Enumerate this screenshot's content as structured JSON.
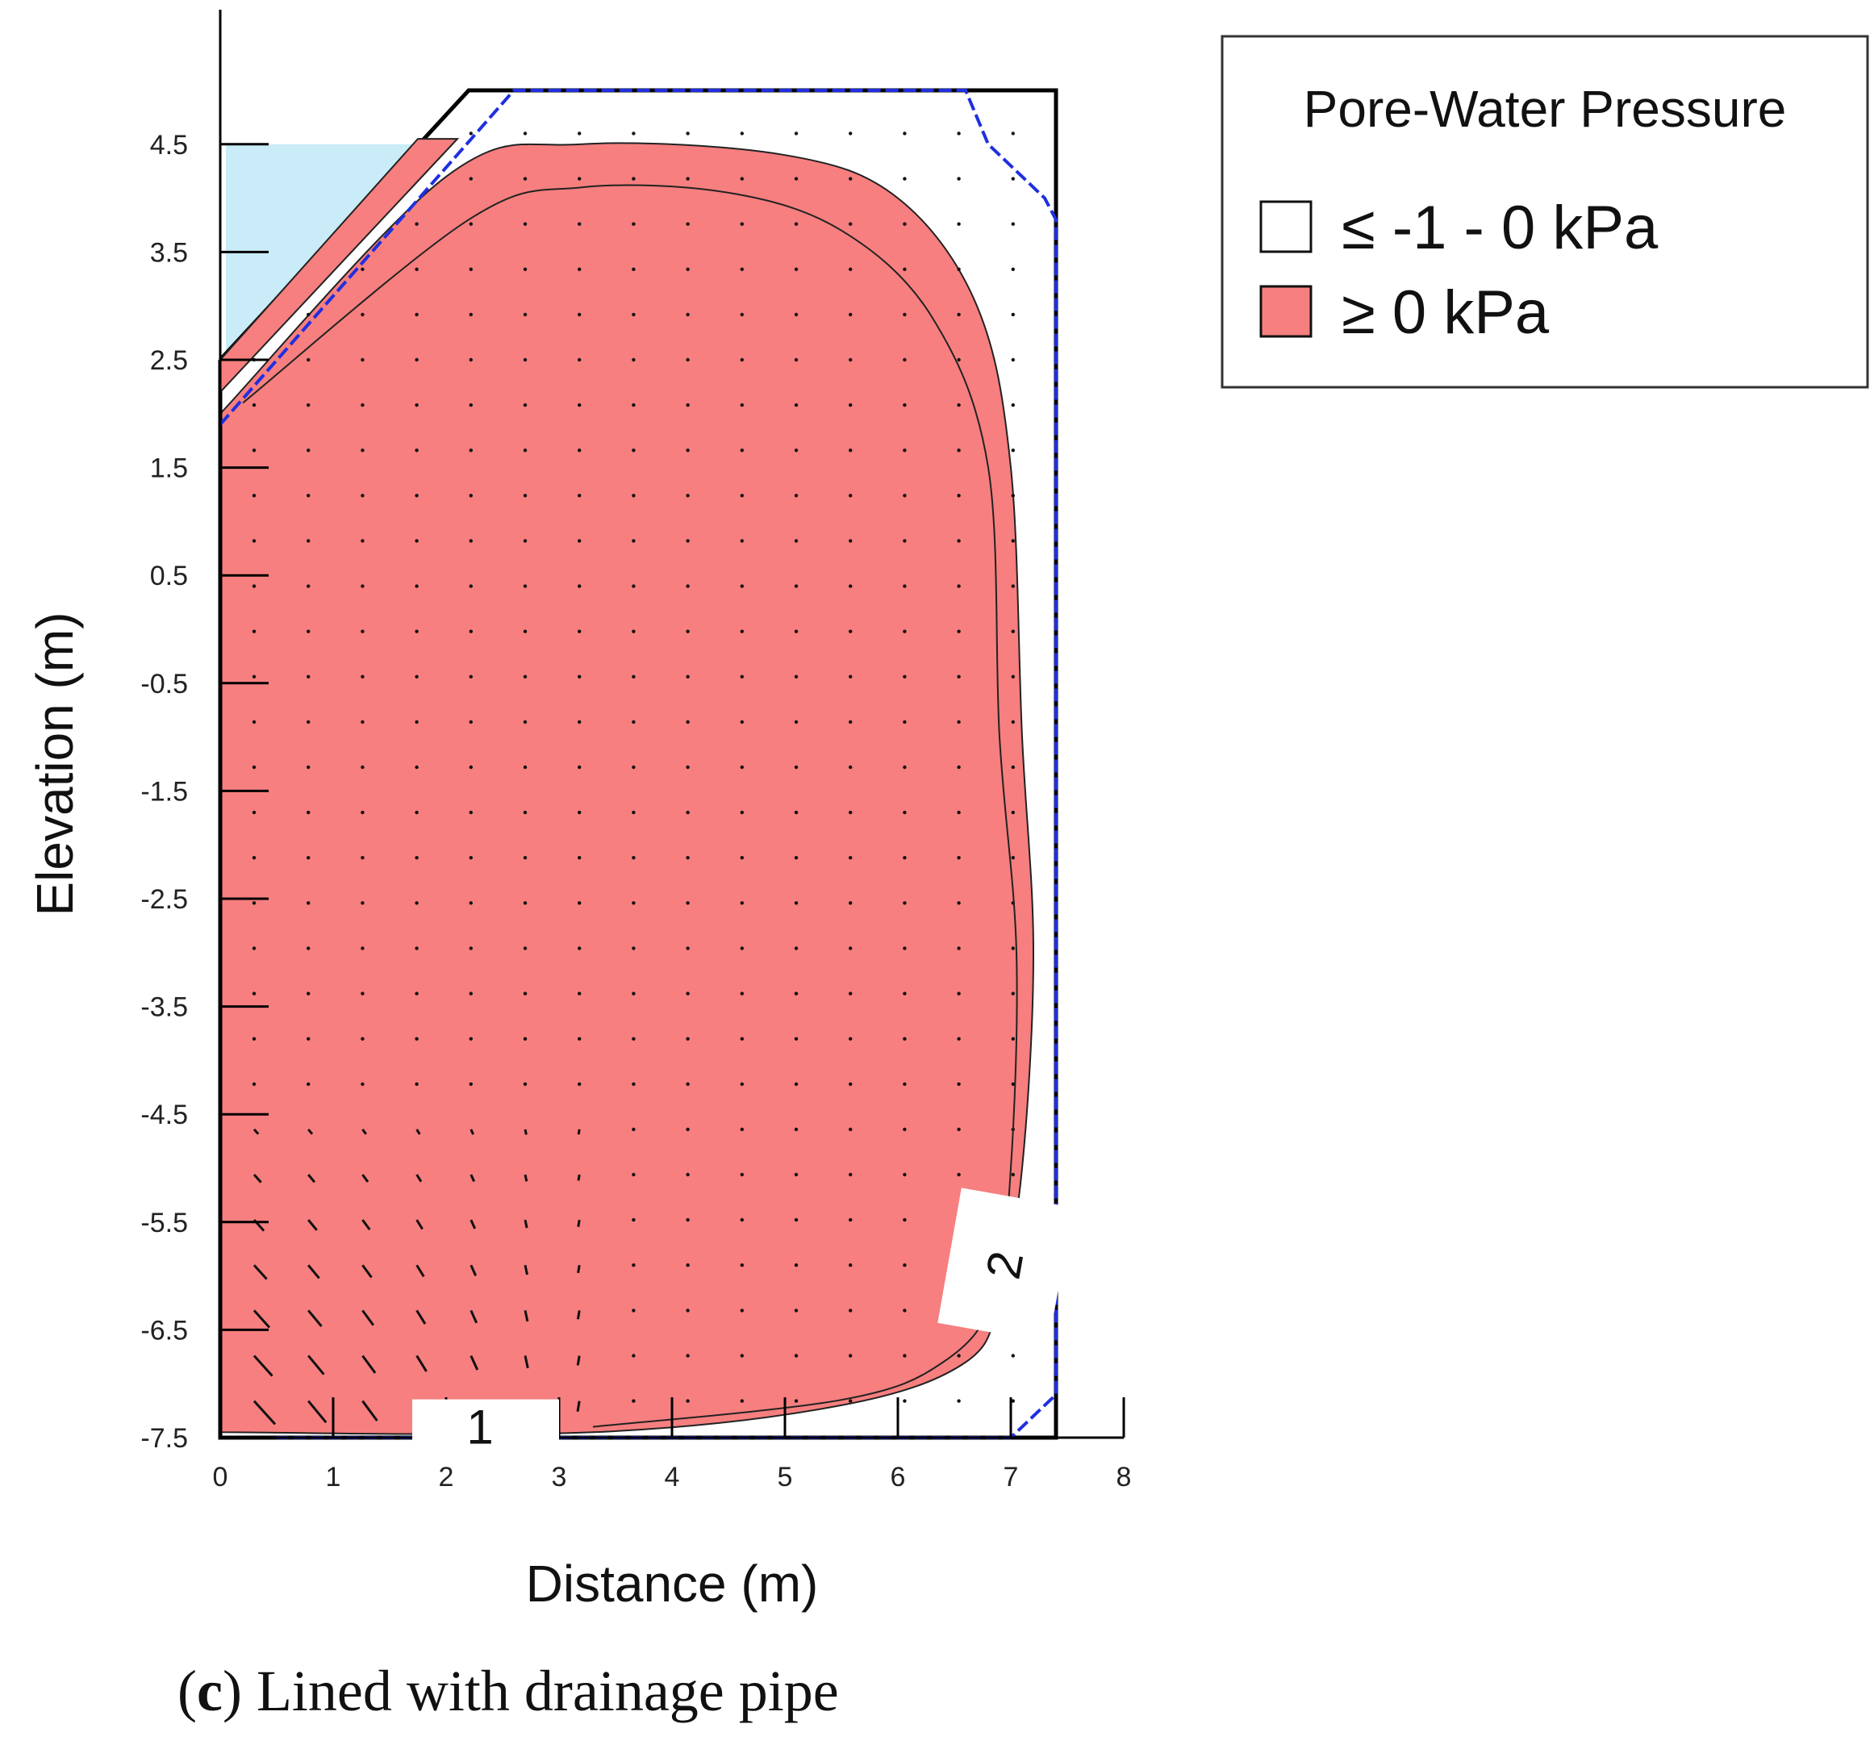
{
  "chart_data": {
    "type": "heatmap",
    "subtype": "contour",
    "xlabel": "Distance (m)",
    "ylabel": "Elevation (m)",
    "xlim": [
      0,
      8
    ],
    "ylim": [
      -7.5,
      5
    ],
    "x_ticks": [
      "0",
      "1",
      "2",
      "3",
      "4",
      "5",
      "6",
      "7",
      "8"
    ],
    "y_ticks": [
      "4.5",
      "3.5",
      "2.5",
      "1.5",
      "0.5",
      "-0.5",
      "-1.5",
      "-2.5",
      "-3.5",
      "-4.5",
      "-5.5",
      "-6.5",
      "-7.5"
    ],
    "legend": {
      "title": "Pore-Water Pressure",
      "placement": "top-right",
      "entries": [
        {
          "label": "≤ -1 - 0 kPa",
          "color": "#ffffff"
        },
        {
          "label": "≥ 0 kPa",
          "color": "#f77f7f"
        }
      ]
    },
    "contour_labels": [
      "1",
      "2"
    ],
    "domain_outline": [
      [
        0,
        2.5
      ],
      [
        2.2,
        5
      ],
      [
        7.4,
        5
      ],
      [
        7.4,
        -7.5
      ],
      [
        0,
        -7.5
      ]
    ],
    "phreatic_line": [
      [
        0,
        1.9
      ],
      [
        2.6,
        5
      ],
      [
        6.6,
        5
      ],
      [
        6.8,
        4.5
      ],
      [
        7.3,
        4
      ],
      [
        7.4,
        3.8
      ],
      [
        7.4,
        -7.1
      ],
      [
        7.0,
        -7.5
      ],
      [
        0.5,
        -7.5
      ]
    ],
    "water_region": [
      [
        0.05,
        4.5
      ],
      [
        1.8,
        4.5
      ],
      [
        0.05,
        2.5
      ]
    ],
    "positive_region": [
      [
        0,
        2
      ],
      [
        2,
        4.2
      ],
      [
        3.2,
        4.5
      ],
      [
        5,
        4.4
      ],
      [
        6,
        4.0
      ],
      [
        6.7,
        3.0
      ],
      [
        7.0,
        1.5
      ],
      [
        7.1,
        -1
      ],
      [
        7.2,
        -3
      ],
      [
        7.1,
        -5
      ],
      [
        6.9,
        -6.2
      ],
      [
        6.6,
        -6.8
      ],
      [
        5.5,
        -7.2
      ],
      [
        3.3,
        -7.45
      ],
      [
        0,
        -7.45
      ]
    ],
    "inner_contour": [
      [
        0.2,
        2.1
      ],
      [
        2.2,
        3.8
      ],
      [
        3.2,
        4.1
      ],
      [
        4.5,
        4.05
      ],
      [
        5.5,
        3.7
      ],
      [
        6.3,
        2.9
      ],
      [
        6.8,
        1.5
      ],
      [
        6.9,
        -1
      ],
      [
        7.05,
        -3
      ],
      [
        7.0,
        -5
      ],
      [
        6.85,
        -6.2
      ],
      [
        6.4,
        -6.8
      ],
      [
        5.5,
        -7.15
      ],
      [
        3.3,
        -7.4
      ]
    ],
    "colors": {
      "positive": "#f77f7f",
      "unsaturated": "#ffffff",
      "water": "#c9ecf8",
      "phreatic": "#1f2fe0"
    }
  },
  "caption": {
    "letter": "c",
    "text": " Lined with drainage pipe"
  }
}
